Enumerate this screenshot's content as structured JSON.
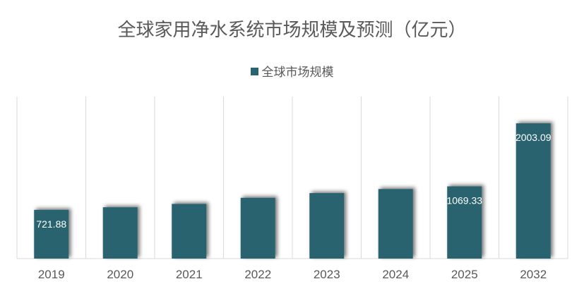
{
  "chart_data": {
    "type": "bar",
    "title": "全球家用净水系统市场规模及预测（亿元）",
    "legend": "全球市场规模",
    "legend_position": "top",
    "categories": [
      "2019",
      "2020",
      "2021",
      "2022",
      "2023",
      "2024",
      "2025",
      "2032"
    ],
    "values": [
      721.88,
      760,
      810,
      900,
      970,
      1030,
      1069.33,
      2003.09
    ],
    "data_labels": [
      "721.88",
      "",
      "",
      "",
      "",
      "",
      "1069.33",
      "2003.09"
    ],
    "ylim": [
      0,
      2400
    ],
    "xlabel": "",
    "ylabel": "",
    "grid": "vertical",
    "color": "#2a6470"
  }
}
